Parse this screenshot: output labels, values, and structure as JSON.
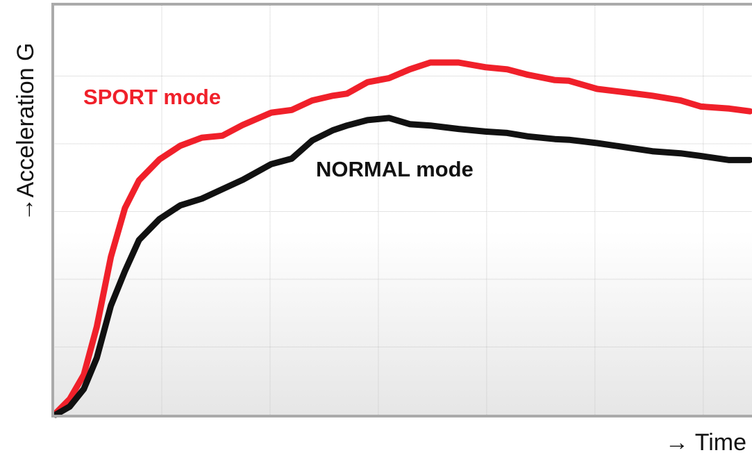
{
  "chart_data": {
    "type": "line",
    "x_label": "→ Time",
    "y_label": "→Acceleration G",
    "grid": true,
    "xlim": [
      0,
      6.45
    ],
    "xticks": [
      1,
      2,
      3,
      4,
      5,
      6
    ],
    "ylim": [
      0,
      6
    ],
    "yticks": [
      1,
      2,
      3,
      4,
      5
    ],
    "x": [
      0.02,
      0.15,
      0.28,
      0.4,
      0.53,
      0.66,
      0.79,
      0.98,
      1.17,
      1.37,
      1.56,
      1.75,
      2.01,
      2.2,
      2.39,
      2.58,
      2.71,
      2.9,
      3.1,
      3.29,
      3.48,
      3.74,
      3.99,
      4.19,
      4.38,
      4.63,
      4.76,
      5.02,
      5.28,
      5.53,
      5.79,
      5.98,
      6.24,
      6.43
    ],
    "series": [
      {
        "name": "SPORT mode",
        "color": "#f0202a",
        "values": [
          0.02,
          0.23,
          0.59,
          1.3,
          2.33,
          3.05,
          3.46,
          3.77,
          3.97,
          4.09,
          4.12,
          4.28,
          4.46,
          4.5,
          4.64,
          4.71,
          4.74,
          4.91,
          4.97,
          5.1,
          5.2,
          5.2,
          5.13,
          5.1,
          5.02,
          4.94,
          4.93,
          4.81,
          4.76,
          4.71,
          4.64,
          4.55,
          4.52,
          4.48
        ]
      },
      {
        "name": "NORMAL mode",
        "color": "#111111",
        "values": [
          0.0,
          0.12,
          0.38,
          0.84,
          1.61,
          2.12,
          2.58,
          2.89,
          3.09,
          3.19,
          3.33,
          3.47,
          3.7,
          3.78,
          4.05,
          4.2,
          4.27,
          4.35,
          4.38,
          4.29,
          4.27,
          4.22,
          4.18,
          4.16,
          4.11,
          4.07,
          4.06,
          4.01,
          3.95,
          3.89,
          3.86,
          3.82,
          3.76,
          3.76
        ]
      }
    ]
  }
}
